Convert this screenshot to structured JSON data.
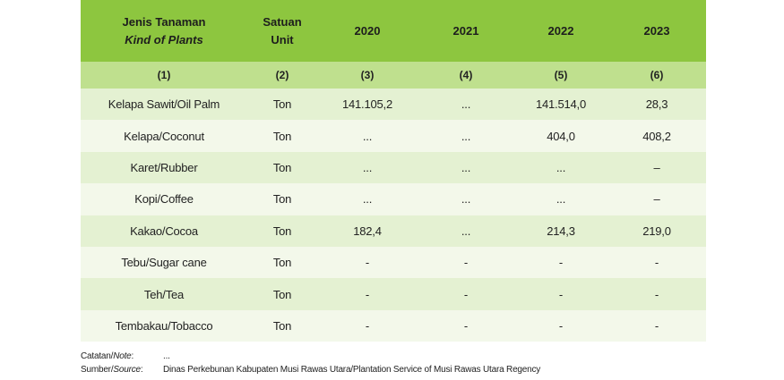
{
  "header": {
    "col_plant_id": "Jenis Tanaman",
    "col_plant_en": "Kind of Plants",
    "col_unit_id": "Satuan",
    "col_unit_en": "Unit",
    "years": [
      "2020",
      "2021",
      "2022",
      "2023"
    ]
  },
  "col_numbers": [
    "(1)",
    "(2)",
    "(3)",
    "(4)",
    "(5)",
    "(6)"
  ],
  "rows": [
    {
      "plant": "Kelapa Sawit/Oil Palm",
      "unit": "Ton",
      "v2020": "141.105,2",
      "v2021": "...",
      "v2022": "141.514,0",
      "v2023": "28,3"
    },
    {
      "plant": "Kelapa/Coconut",
      "unit": "Ton",
      "v2020": "...",
      "v2021": "...",
      "v2022": "404,0",
      "v2023": "408,2"
    },
    {
      "plant": "Karet/Rubber",
      "unit": "Ton",
      "v2020": "...",
      "v2021": "...",
      "v2022": "...",
      "v2023": "–"
    },
    {
      "plant": "Kopi/Coffee",
      "unit": "Ton",
      "v2020": "...",
      "v2021": "...",
      "v2022": "...",
      "v2023": "–"
    },
    {
      "plant": "Kakao/Cocoa",
      "unit": "Ton",
      "v2020": "182,4",
      "v2021": "...",
      "v2022": "214,3",
      "v2023": "219,0"
    },
    {
      "plant": "Tebu/Sugar cane",
      "unit": "Ton",
      "v2020": "-",
      "v2021": "-",
      "v2022": "-",
      "v2023": "-"
    },
    {
      "plant": "Teh/Tea",
      "unit": "Ton",
      "v2020": "-",
      "v2021": "-",
      "v2022": "-",
      "v2023": "-"
    },
    {
      "plant": "Tembakau/Tobacco",
      "unit": "Ton",
      "v2020": "-",
      "v2021": "-",
      "v2022": "-",
      "v2023": "-"
    }
  ],
  "notes": {
    "note_label_id": "Catatan/",
    "note_label_en": "Note",
    "note_value": "...",
    "source_label_id": "Sumber/",
    "source_label_en": "Source",
    "source_value": "Dinas Perkebunan Kabupaten Musi Rawas Utara/Plantation Service of Musi Rawas Utara Regency"
  },
  "colors": {
    "header_bg": "#8dc63f",
    "number_row_bg": "#bfe08e",
    "row_odd_bg": "#e4f1d2",
    "row_even_bg": "#f3f8ea"
  }
}
